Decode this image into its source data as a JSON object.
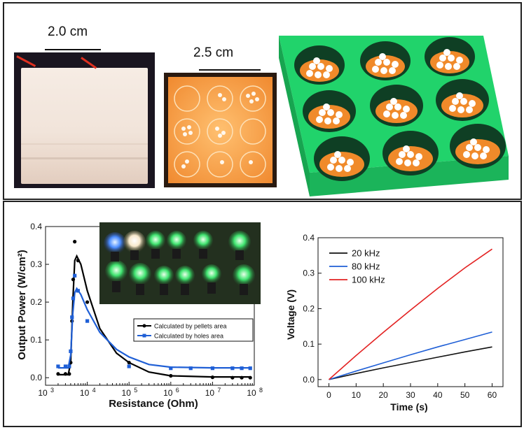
{
  "top": {
    "scale_left": "2.0 cm",
    "scale_middle": "2.5 cm",
    "colors": {
      "block_bg": "#f3e9e1",
      "orange_glow": "#f7a24a",
      "green_model": "#21d36b",
      "hole_dark": "#12462a",
      "pellet_orange": "#f08a2a"
    }
  },
  "chart_data": [
    {
      "type": "scatter",
      "xlabel": "Resistance (Ohm)",
      "ylabel": "Output Power (W/cm²)",
      "xscale": "log",
      "xlim": [
        1000,
        100000000
      ],
      "ylim": [
        -0.02,
        0.4
      ],
      "x_ticks": [
        1000,
        10000,
        100000,
        1000000,
        10000000,
        100000000
      ],
      "x_tick_labels": [
        [
          "10",
          "3"
        ],
        [
          "10",
          "4"
        ],
        [
          "10",
          "5"
        ],
        [
          "10",
          "6"
        ],
        [
          "10",
          "7"
        ],
        [
          "10",
          "8"
        ]
      ],
      "y_ticks": [
        0.0,
        0.1,
        0.2,
        0.3,
        0.4
      ],
      "y_tick_labels": [
        "0.0",
        "0.1",
        "0.2",
        "0.3",
        "0.4"
      ],
      "legend_position": "center-right",
      "series": [
        {
          "name": "Calculated by pellets area",
          "color": "#000000",
          "points": [
            [
              2000,
              0.01
            ],
            [
              3000,
              0.01
            ],
            [
              3700,
              0.01
            ],
            [
              4000,
              0.04
            ],
            [
              4300,
              0.15
            ],
            [
              4600,
              0.26
            ],
            [
              5000,
              0.36
            ],
            [
              6000,
              0.31
            ],
            [
              10000,
              0.2
            ],
            [
              100000,
              0.04
            ],
            [
              1000000,
              0.005
            ],
            [
              10000000,
              0.001
            ],
            [
              30000000,
              0.0
            ],
            [
              50000000,
              0.0
            ],
            [
              80000000,
              0.0
            ]
          ],
          "fit": [
            [
              2000,
              0.008
            ],
            [
              3500,
              0.008
            ],
            [
              4000,
              0.04
            ],
            [
              4500,
              0.2
            ],
            [
              5000,
              0.31
            ],
            [
              5600,
              0.322
            ],
            [
              7000,
              0.3
            ],
            [
              10000,
              0.23
            ],
            [
              20000,
              0.13
            ],
            [
              50000,
              0.065
            ],
            [
              100000,
              0.04
            ],
            [
              300000,
              0.015
            ],
            [
              1000000,
              0.005
            ],
            [
              10000000,
              0.002
            ],
            [
              80000000,
              0.002
            ]
          ]
        },
        {
          "name": "Calculated by holes area",
          "color": "#1f5fd6",
          "points": [
            [
              2000,
              0.03
            ],
            [
              3000,
              0.03
            ],
            [
              3700,
              0.03
            ],
            [
              4000,
              0.07
            ],
            [
              4300,
              0.16
            ],
            [
              4600,
              0.21
            ],
            [
              5000,
              0.27
            ],
            [
              6000,
              0.23
            ],
            [
              10000,
              0.15
            ],
            [
              100000,
              0.03
            ],
            [
              1000000,
              0.025
            ],
            [
              3000000,
              0.025
            ],
            [
              10000000,
              0.025
            ],
            [
              30000000,
              0.025
            ],
            [
              50000000,
              0.025
            ],
            [
              80000000,
              0.025
            ]
          ],
          "fit": [
            [
              2000,
              0.026
            ],
            [
              3500,
              0.026
            ],
            [
              4000,
              0.06
            ],
            [
              4500,
              0.17
            ],
            [
              5000,
              0.225
            ],
            [
              5600,
              0.236
            ],
            [
              7000,
              0.22
            ],
            [
              10000,
              0.18
            ],
            [
              20000,
              0.12
            ],
            [
              50000,
              0.075
            ],
            [
              100000,
              0.055
            ],
            [
              300000,
              0.035
            ],
            [
              1000000,
              0.028
            ],
            [
              10000000,
              0.026
            ],
            [
              80000000,
              0.026
            ]
          ]
        }
      ]
    },
    {
      "type": "line",
      "xlabel": "Time (s)",
      "ylabel": "Voltage (V)",
      "xlim": [
        -4,
        64
      ],
      "ylim": [
        -0.02,
        0.4
      ],
      "x_ticks": [
        0,
        10,
        20,
        30,
        40,
        50,
        60
      ],
      "x_tick_labels": [
        "0",
        "10",
        "20",
        "30",
        "40",
        "50",
        "60"
      ],
      "y_ticks": [
        0.0,
        0.1,
        0.2,
        0.3,
        0.4
      ],
      "y_tick_labels": [
        "0.0",
        "0.1",
        "0.2",
        "0.3",
        "0.4"
      ],
      "legend_position": "top-left",
      "series": [
        {
          "name": "20 kHz",
          "color": "#111111",
          "x": [
            0,
            10,
            20,
            30,
            40,
            50,
            60
          ],
          "values": [
            0.0,
            0.017,
            0.033,
            0.048,
            0.063,
            0.078,
            0.092
          ]
        },
        {
          "name": "80 kHz",
          "color": "#1f5fd6",
          "x": [
            0,
            10,
            20,
            30,
            40,
            50,
            60
          ],
          "values": [
            0.0,
            0.024,
            0.047,
            0.07,
            0.092,
            0.113,
            0.134
          ]
        },
        {
          "name": "100 kHz",
          "color": "#e32222",
          "x": [
            0,
            10,
            20,
            30,
            40,
            50,
            60
          ],
          "values": [
            0.0,
            0.068,
            0.133,
            0.196,
            0.257,
            0.315,
            0.368
          ]
        }
      ]
    }
  ]
}
